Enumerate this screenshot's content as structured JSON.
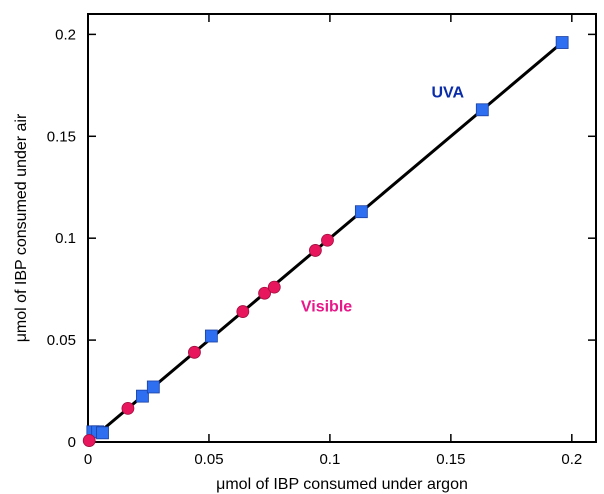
{
  "chart_data": {
    "type": "scatter",
    "title": "",
    "xlabel": "μmol of IBP consumed under argon",
    "ylabel": "μmol of IBP consumed under air",
    "xlim": [
      0,
      0.21
    ],
    "ylim": [
      0,
      0.21
    ],
    "xticks": [
      0,
      0.05,
      0.1,
      0.15,
      0.2
    ],
    "yticks": [
      0,
      0.05,
      0.1,
      0.15,
      0.2
    ],
    "xtick_labels": [
      "0",
      "0.05",
      "0.1",
      "0.15",
      "0.2"
    ],
    "ytick_labels": [
      "0",
      "0.05",
      "0.1",
      "0.15",
      "0.2"
    ],
    "grid": false,
    "series": [
      {
        "name": "UVA",
        "marker": "square",
        "color": "#2e6ff2",
        "points": [
          {
            "x": 0.002,
            "y": 0.005
          },
          {
            "x": 0.004,
            "y": 0.005
          },
          {
            "x": 0.006,
            "y": 0.0045
          },
          {
            "x": 0.0225,
            "y": 0.0225
          },
          {
            "x": 0.027,
            "y": 0.027
          },
          {
            "x": 0.051,
            "y": 0.052
          },
          {
            "x": 0.113,
            "y": 0.113
          },
          {
            "x": 0.163,
            "y": 0.163
          },
          {
            "x": 0.196,
            "y": 0.196
          }
        ]
      },
      {
        "name": "Visible",
        "marker": "circle",
        "color": "#e8175d",
        "points": [
          {
            "x": 0.0005,
            "y": 0.0007
          },
          {
            "x": 0.0165,
            "y": 0.0165
          },
          {
            "x": 0.044,
            "y": 0.044
          },
          {
            "x": 0.064,
            "y": 0.064
          },
          {
            "x": 0.073,
            "y": 0.073
          },
          {
            "x": 0.077,
            "y": 0.076
          },
          {
            "x": 0.094,
            "y": 0.094
          },
          {
            "x": 0.099,
            "y": 0.099
          }
        ]
      }
    ],
    "fit_line": {
      "x0": 0,
      "y0": 0,
      "x1": 0.196,
      "y1": 0.196,
      "color": "#000000"
    },
    "annotations": [
      {
        "text": "UVA",
        "x": 0.142,
        "y": 0.169,
        "color": "#0a2ca8"
      },
      {
        "text": "Visible",
        "x": 0.088,
        "y": 0.064,
        "color": "#e8178a"
      }
    ]
  }
}
